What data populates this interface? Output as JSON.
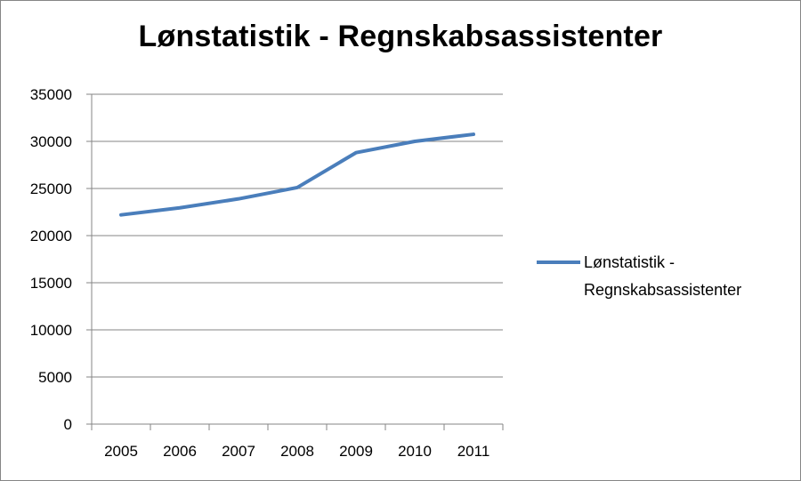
{
  "chart_data": {
    "type": "line",
    "title": "Lønstatistik - Regnskabsassistenter",
    "categories": [
      "2005",
      "2006",
      "2007",
      "2008",
      "2009",
      "2010",
      "2011"
    ],
    "series": [
      {
        "name": "Lønstatistik - Regnskabsassistenter",
        "values": [
          22200,
          22950,
          23900,
          25100,
          28800,
          30000,
          30750
        ],
        "color": "#4A7EBB"
      }
    ],
    "ylim": [
      0,
      35000
    ],
    "yticks": [
      "0",
      "5000",
      "10000",
      "15000",
      "20000",
      "25000",
      "30000",
      "35000"
    ],
    "grid": true,
    "legend_position": "right",
    "legend_lines": [
      "Lønstatistik -",
      "Regnskabsassistenter"
    ]
  }
}
